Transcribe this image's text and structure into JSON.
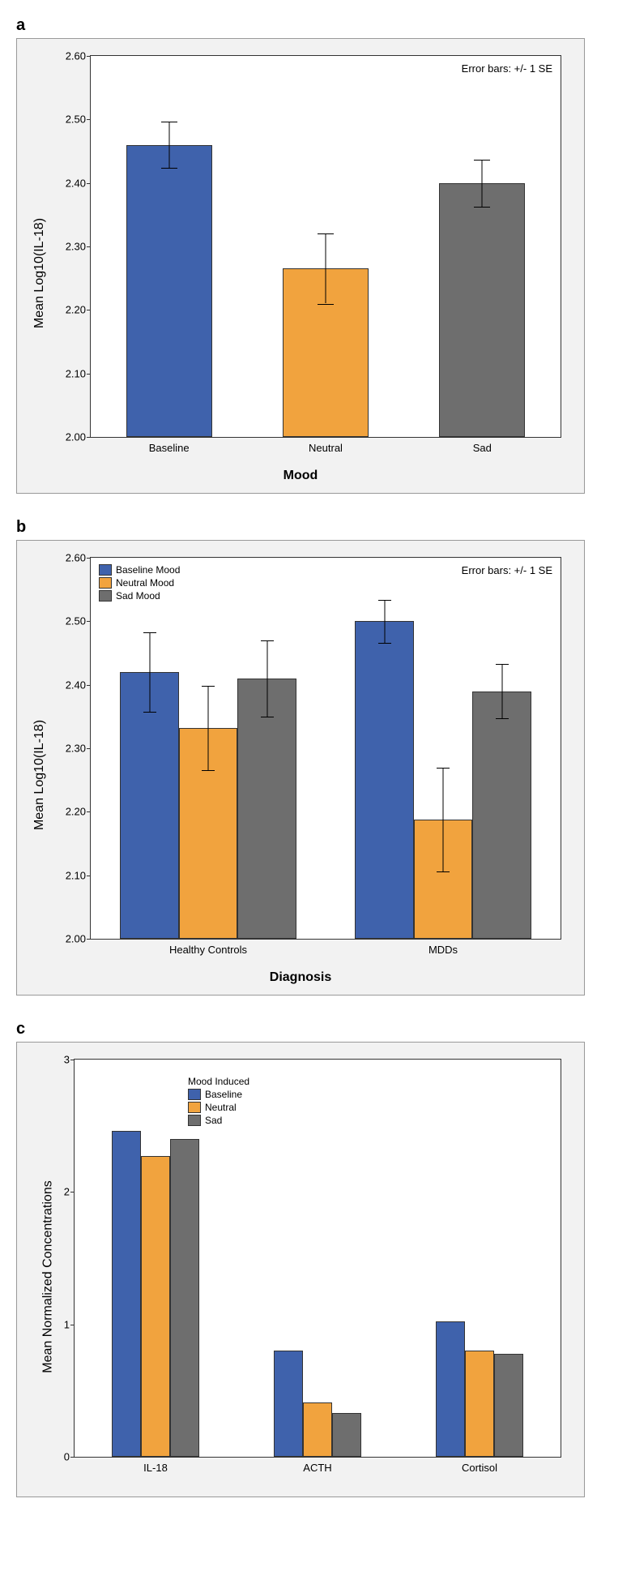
{
  "panel_a": {
    "label": "a",
    "type": "bar",
    "ylabel": "Mean Log10(IL-18)",
    "xlabel": "Mood",
    "annotation": "Error bars: +/- 1 SE",
    "ylim": [
      2.0,
      2.6
    ],
    "yticks": [
      2.0,
      2.1,
      2.2,
      2.3,
      2.4,
      2.5,
      2.6
    ],
    "ytick_labels": [
      "2.00",
      "2.10",
      "2.20",
      "2.30",
      "2.40",
      "2.50",
      "2.60"
    ],
    "categories": [
      "Baseline",
      "Neutral",
      "Sad"
    ],
    "values": [
      2.46,
      2.265,
      2.4
    ],
    "errors": [
      0.036,
      0.055,
      0.037
    ],
    "bar_colors": [
      "#3f62ac",
      "#f1a33e",
      "#6e6e6e"
    ],
    "bar_width": 0.55,
    "background_color": "#f2f2f2",
    "plot_bg": "#ffffff",
    "error_cap_width": 20,
    "label_fontsize": 16
  },
  "panel_b": {
    "label": "b",
    "type": "grouped_bar",
    "ylabel": "Mean Log10(IL-18)",
    "xlabel": "Diagnosis",
    "annotation": "Error bars: +/- 1 SE",
    "ylim": [
      2.0,
      2.6
    ],
    "yticks": [
      2.0,
      2.1,
      2.2,
      2.3,
      2.4,
      2.5,
      2.6
    ],
    "ytick_labels": [
      "2.00",
      "2.10",
      "2.20",
      "2.30",
      "2.40",
      "2.50",
      "2.60"
    ],
    "groups": [
      "Healthy Controls",
      "MDDs"
    ],
    "series": [
      {
        "name": "Baseline Mood",
        "color": "#3f62ac",
        "values": [
          2.42,
          2.5
        ],
        "errors": [
          0.062,
          0.034
        ]
      },
      {
        "name": "Neutral Mood",
        "color": "#f1a33e",
        "values": [
          2.332,
          2.188
        ],
        "errors": [
          0.066,
          0.082
        ]
      },
      {
        "name": "Sad Mood",
        "color": "#6e6e6e",
        "values": [
          2.41,
          2.39
        ],
        "errors": [
          0.06,
          0.043
        ]
      }
    ],
    "bar_width": 0.25,
    "background_color": "#f2f2f2",
    "plot_bg": "#ffffff",
    "error_cap_width": 16
  },
  "panel_c": {
    "label": "c",
    "type": "grouped_bar",
    "ylabel": "Mean Normalized Concentrations",
    "xlabel": "",
    "legend_title": "Mood Induced",
    "ylim": [
      0,
      3
    ],
    "yticks": [
      0,
      1,
      2,
      3
    ],
    "ytick_labels": [
      "0",
      "1",
      "2",
      "3"
    ],
    "groups": [
      "IL-18",
      "ACTH",
      "Cortisol"
    ],
    "series": [
      {
        "name": "Baseline",
        "color": "#3f62ac",
        "values": [
          2.46,
          0.8,
          1.02
        ]
      },
      {
        "name": "Neutral",
        "color": "#f1a33e",
        "values": [
          2.27,
          0.41,
          0.8
        ]
      },
      {
        "name": "Sad",
        "color": "#6e6e6e",
        "values": [
          2.4,
          0.33,
          0.78
        ]
      }
    ],
    "bar_width": 0.18,
    "background_color": "#f2f2f2",
    "plot_bg": "#ffffff"
  }
}
